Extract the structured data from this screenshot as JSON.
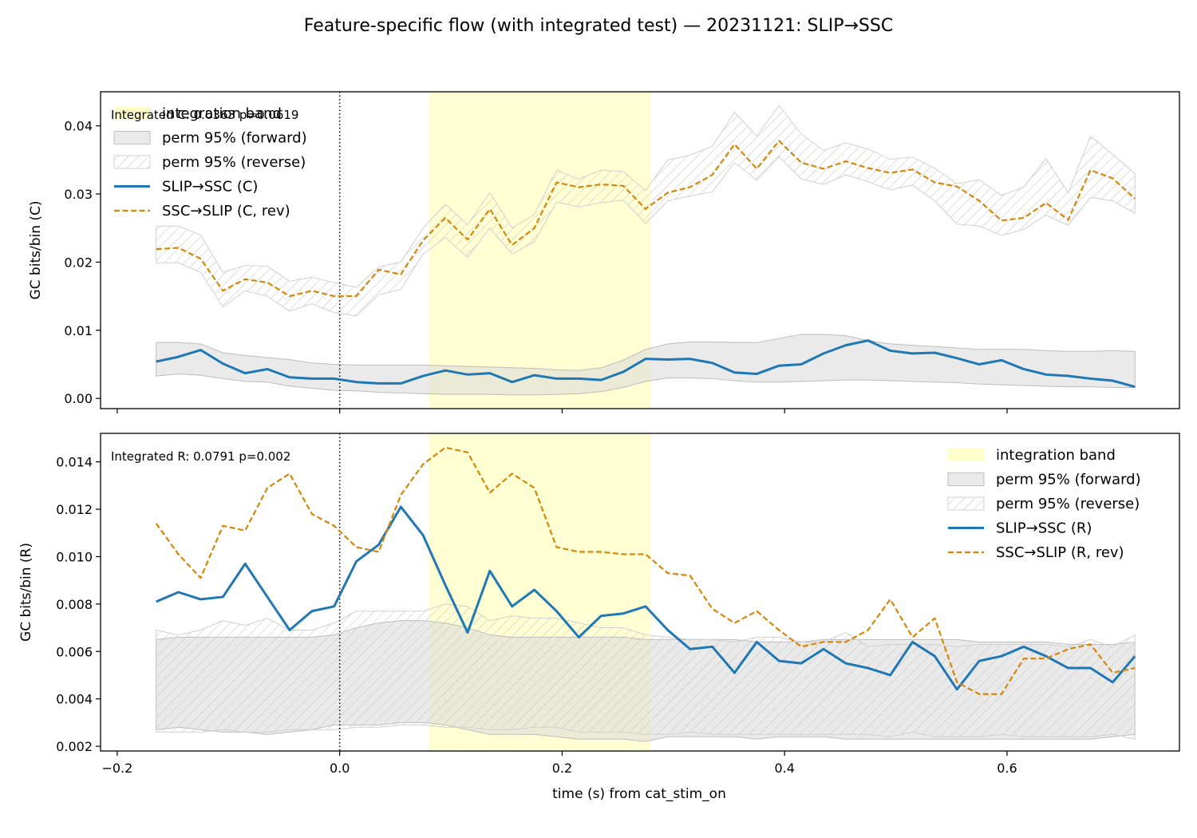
{
  "title": "Feature-specific flow (with integrated test) — 20231121: SLIP→SSC",
  "colors": {
    "forward": "#1f77b4",
    "reverse": "#d4870a",
    "band": "#ffffcc",
    "perm_fill": "#d9d9d9",
    "hatch": "#c8c8c8"
  },
  "xlabel": "time (s) from cat_stim_on",
  "chart_data": [
    {
      "type": "line",
      "panel": "C",
      "ylabel": "GC bits/bin (C)",
      "annotation": "Integrated C: 0.0363  p=0.0619",
      "xlim": [
        -0.215,
        0.755
      ],
      "ylim": [
        -0.0015,
        0.045
      ],
      "xticks": [
        -0.2,
        0.0,
        0.2,
        0.4,
        0.6
      ],
      "xtick_labels": [
        "−0.2",
        "0.0",
        "0.2",
        "0.4",
        "0.6"
      ],
      "show_xtick_labels": false,
      "yticks": [
        0.0,
        0.01,
        0.02,
        0.03,
        0.04
      ],
      "ytick_labels": [
        "0.00",
        "0.01",
        "0.02",
        "0.03",
        "0.04"
      ],
      "integration_band": [
        0.08,
        0.28
      ],
      "vline_x": 0.0,
      "legend_position": "upper left",
      "legend": [
        "integration band",
        "perm 95% (forward)",
        "perm 95% (reverse)",
        "SLIP→SSC (C)",
        "SSC→SLIP (C, rev)"
      ],
      "x": [
        -0.165,
        -0.145,
        -0.125,
        -0.105,
        -0.085,
        -0.065,
        -0.045,
        -0.025,
        -0.005,
        0.015,
        0.035,
        0.055,
        0.075,
        0.095,
        0.115,
        0.135,
        0.155,
        0.175,
        0.195,
        0.215,
        0.235,
        0.255,
        0.275,
        0.295,
        0.315,
        0.335,
        0.355,
        0.375,
        0.395,
        0.415,
        0.435,
        0.455,
        0.475,
        0.495,
        0.515,
        0.535,
        0.555,
        0.575,
        0.595,
        0.615,
        0.635,
        0.655,
        0.675,
        0.695,
        0.715
      ],
      "series": [
        {
          "name": "SLIP→SSC (C)",
          "role": "forward",
          "values": [
            0.0054,
            0.0061,
            0.0071,
            0.0051,
            0.0037,
            0.0043,
            0.0031,
            0.0029,
            0.0029,
            0.0024,
            0.0022,
            0.0022,
            0.0033,
            0.0041,
            0.0035,
            0.0037,
            0.0024,
            0.0034,
            0.0029,
            0.0029,
            0.0027,
            0.0039,
            0.0058,
            0.0057,
            0.0058,
            0.0052,
            0.0038,
            0.0036,
            0.0048,
            0.005,
            0.0066,
            0.0078,
            0.0085,
            0.007,
            0.0066,
            0.0067,
            0.0059,
            0.005,
            0.0056,
            0.0043,
            0.0035,
            0.0033,
            0.0029,
            0.0026,
            0.0017
          ]
        },
        {
          "name": "SSC→SLIP (C, rev)",
          "role": "reverse",
          "values": [
            0.0219,
            0.0221,
            0.0205,
            0.0158,
            0.0175,
            0.017,
            0.015,
            0.0158,
            0.015,
            0.015,
            0.0189,
            0.0182,
            0.0232,
            0.0265,
            0.0233,
            0.0278,
            0.0225,
            0.025,
            0.0317,
            0.031,
            0.0314,
            0.0312,
            0.0278,
            0.0302,
            0.031,
            0.0328,
            0.0373,
            0.0337,
            0.0378,
            0.0346,
            0.0337,
            0.0348,
            0.0338,
            0.0331,
            0.0336,
            0.0317,
            0.0311,
            0.029,
            0.0261,
            0.0265,
            0.0287,
            0.0262,
            0.0335,
            0.0323,
            0.0293
          ]
        }
      ],
      "perm_forward": {
        "lower": [
          0.0033,
          0.0036,
          0.0034,
          0.0029,
          0.0025,
          0.0024,
          0.0018,
          0.0015,
          0.0012,
          0.0011,
          0.0009,
          0.0008,
          0.0007,
          0.0006,
          0.0006,
          0.0006,
          0.0005,
          0.0005,
          0.0006,
          0.0007,
          0.001,
          0.0016,
          0.0025,
          0.003,
          0.003,
          0.0029,
          0.0026,
          0.0024,
          0.0024,
          0.0025,
          0.0026,
          0.0027,
          0.0027,
          0.0026,
          0.0025,
          0.0024,
          0.0023,
          0.0021,
          0.002,
          0.0019,
          0.0018,
          0.0017,
          0.0017,
          0.0016,
          0.0016
        ],
        "upper": [
          0.0082,
          0.0082,
          0.008,
          0.0067,
          0.0063,
          0.006,
          0.0057,
          0.0052,
          0.005,
          0.0049,
          0.0049,
          0.0049,
          0.0049,
          0.0048,
          0.0047,
          0.0046,
          0.0045,
          0.0044,
          0.0042,
          0.0041,
          0.0045,
          0.0056,
          0.0072,
          0.008,
          0.0083,
          0.0083,
          0.0082,
          0.0082,
          0.0088,
          0.0094,
          0.0094,
          0.0092,
          0.0085,
          0.008,
          0.0078,
          0.0076,
          0.0074,
          0.0072,
          0.0072,
          0.0072,
          0.007,
          0.0069,
          0.0069,
          0.007,
          0.0069
        ]
      },
      "perm_reverse": {
        "lower": [
          0.0199,
          0.0199,
          0.0185,
          0.0134,
          0.0158,
          0.015,
          0.0128,
          0.0139,
          0.0126,
          0.0121,
          0.0152,
          0.016,
          0.0212,
          0.0236,
          0.0207,
          0.025,
          0.0212,
          0.023,
          0.0288,
          0.0281,
          0.0287,
          0.0291,
          0.0257,
          0.029,
          0.0297,
          0.0303,
          0.0346,
          0.032,
          0.0355,
          0.0322,
          0.0314,
          0.0328,
          0.0318,
          0.0306,
          0.0313,
          0.029,
          0.0256,
          0.0253,
          0.0239,
          0.0248,
          0.0269,
          0.0254,
          0.0295,
          0.029,
          0.0272
        ],
        "upper": [
          0.0253,
          0.0253,
          0.024,
          0.0185,
          0.0195,
          0.0194,
          0.0172,
          0.0178,
          0.017,
          0.0163,
          0.0193,
          0.02,
          0.025,
          0.0285,
          0.0255,
          0.0302,
          0.025,
          0.027,
          0.0335,
          0.0322,
          0.0335,
          0.0333,
          0.0305,
          0.035,
          0.0357,
          0.037,
          0.042,
          0.0385,
          0.043,
          0.0388,
          0.0364,
          0.0375,
          0.0366,
          0.0351,
          0.0354,
          0.0338,
          0.0315,
          0.0321,
          0.0298,
          0.031,
          0.0352,
          0.0302,
          0.0385,
          0.0358,
          0.033
        ]
      }
    },
    {
      "type": "line",
      "panel": "R",
      "ylabel": "GC bits/bin (R)",
      "annotation": "Integrated R: 0.0791  p=0.002",
      "xlim": [
        -0.215,
        0.755
      ],
      "ylim": [
        0.0018,
        0.0152
      ],
      "xticks": [
        -0.2,
        0.0,
        0.2,
        0.4,
        0.6
      ],
      "xtick_labels": [
        "−0.2",
        "0.0",
        "0.2",
        "0.4",
        "0.6"
      ],
      "show_xtick_labels": true,
      "yticks": [
        0.002,
        0.004,
        0.006,
        0.008,
        0.01,
        0.012,
        0.014
      ],
      "ytick_labels": [
        "0.002",
        "0.004",
        "0.006",
        "0.008",
        "0.010",
        "0.012",
        "0.014"
      ],
      "integration_band": [
        0.08,
        0.28
      ],
      "vline_x": 0.0,
      "legend_position": "upper right",
      "legend": [
        "integration band",
        "perm 95% (forward)",
        "perm 95% (reverse)",
        "SLIP→SSC (R)",
        "SSC→SLIP (R, rev)"
      ],
      "x": [
        -0.165,
        -0.145,
        -0.125,
        -0.105,
        -0.085,
        -0.065,
        -0.045,
        -0.025,
        -0.005,
        0.015,
        0.035,
        0.055,
        0.075,
        0.095,
        0.115,
        0.135,
        0.155,
        0.175,
        0.195,
        0.215,
        0.235,
        0.255,
        0.275,
        0.295,
        0.315,
        0.335,
        0.355,
        0.375,
        0.395,
        0.415,
        0.435,
        0.455,
        0.475,
        0.495,
        0.515,
        0.535,
        0.555,
        0.575,
        0.595,
        0.615,
        0.635,
        0.655,
        0.675,
        0.695,
        0.715
      ],
      "series": [
        {
          "name": "SLIP→SSC (R)",
          "role": "forward",
          "values": [
            0.0081,
            0.0085,
            0.0082,
            0.0083,
            0.0097,
            0.0083,
            0.0069,
            0.0077,
            0.0079,
            0.0098,
            0.0105,
            0.0121,
            0.0109,
            0.0088,
            0.0068,
            0.0094,
            0.0079,
            0.0086,
            0.0077,
            0.0066,
            0.0075,
            0.0076,
            0.0079,
            0.0069,
            0.0061,
            0.0062,
            0.0051,
            0.0064,
            0.0056,
            0.0055,
            0.0061,
            0.0055,
            0.0053,
            0.005,
            0.0064,
            0.0058,
            0.0044,
            0.0056,
            0.0058,
            0.0062,
            0.0058,
            0.0053,
            0.0053,
            0.0047,
            0.0058
          ]
        },
        {
          "name": "SSC→SLIP (R, rev)",
          "role": "reverse",
          "values": [
            0.0114,
            0.0101,
            0.0091,
            0.0113,
            0.0111,
            0.0129,
            0.0135,
            0.0118,
            0.0113,
            0.0104,
            0.0102,
            0.0126,
            0.0139,
            0.0146,
            0.0144,
            0.0127,
            0.0135,
            0.0129,
            0.0104,
            0.0102,
            0.0102,
            0.0101,
            0.0101,
            0.0093,
            0.0092,
            0.0078,
            0.0072,
            0.0077,
            0.0069,
            0.0062,
            0.0064,
            0.0064,
            0.0069,
            0.0082,
            0.0066,
            0.0074,
            0.0047,
            0.0042,
            0.0042,
            0.0057,
            0.0057,
            0.0061,
            0.0063,
            0.0051,
            0.0053
          ]
        }
      ],
      "perm_forward": {
        "lower": [
          0.0027,
          0.0028,
          0.0027,
          0.0026,
          0.0026,
          0.0025,
          0.0026,
          0.0027,
          0.0029,
          0.0029,
          0.0029,
          0.003,
          0.003,
          0.0029,
          0.0027,
          0.0025,
          0.0025,
          0.0025,
          0.0024,
          0.0023,
          0.0023,
          0.0023,
          0.0022,
          0.0024,
          0.0024,
          0.0024,
          0.0024,
          0.0023,
          0.0024,
          0.0024,
          0.0024,
          0.0023,
          0.0023,
          0.0023,
          0.0023,
          0.0023,
          0.0023,
          0.0023,
          0.0023,
          0.0023,
          0.0023,
          0.0023,
          0.0023,
          0.0024,
          0.0025
        ],
        "upper": [
          0.0065,
          0.0066,
          0.0066,
          0.0066,
          0.0066,
          0.0066,
          0.0066,
          0.0066,
          0.0067,
          0.007,
          0.0072,
          0.0073,
          0.0073,
          0.0072,
          0.007,
          0.0067,
          0.0066,
          0.0066,
          0.0066,
          0.0066,
          0.0066,
          0.0066,
          0.0065,
          0.0065,
          0.0065,
          0.0065,
          0.0065,
          0.0064,
          0.0064,
          0.0064,
          0.0065,
          0.0065,
          0.0065,
          0.0065,
          0.0065,
          0.0065,
          0.0065,
          0.0064,
          0.0064,
          0.0064,
          0.0064,
          0.0063,
          0.0063,
          0.0063,
          0.0064
        ]
      },
      "perm_reverse": {
        "lower": [
          0.0026,
          0.0026,
          0.0026,
          0.0027,
          0.0026,
          0.0026,
          0.0027,
          0.0027,
          0.0027,
          0.0028,
          0.0028,
          0.0029,
          0.0029,
          0.0028,
          0.0028,
          0.0027,
          0.0027,
          0.0028,
          0.0028,
          0.0026,
          0.0026,
          0.0026,
          0.0025,
          0.0025,
          0.0026,
          0.0025,
          0.0025,
          0.0025,
          0.0025,
          0.0025,
          0.0025,
          0.0025,
          0.0025,
          0.0024,
          0.0026,
          0.0024,
          0.0024,
          0.0024,
          0.0025,
          0.0024,
          0.0024,
          0.0024,
          0.0024,
          0.0025,
          0.0023
        ],
        "upper": [
          0.0069,
          0.0067,
          0.0069,
          0.0073,
          0.0071,
          0.0074,
          0.0069,
          0.0069,
          0.0072,
          0.0077,
          0.0077,
          0.0077,
          0.0077,
          0.008,
          0.0079,
          0.0073,
          0.0075,
          0.0074,
          0.0074,
          0.0072,
          0.007,
          0.007,
          0.0067,
          0.0066,
          0.0065,
          0.0065,
          0.0064,
          0.0066,
          0.0066,
          0.0064,
          0.0064,
          0.0068,
          0.0062,
          0.0063,
          0.0063,
          0.0063,
          0.0062,
          0.0063,
          0.0063,
          0.0063,
          0.0063,
          0.0062,
          0.0065,
          0.0062,
          0.0067
        ]
      }
    }
  ]
}
